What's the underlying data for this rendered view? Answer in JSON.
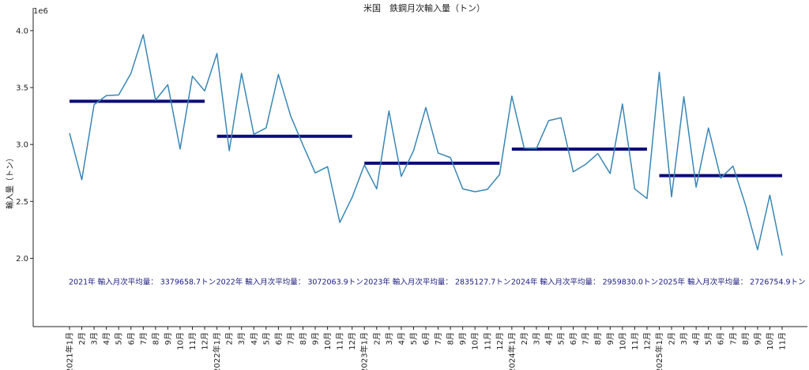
{
  "chart_data": {
    "type": "line",
    "title": "米国　鉄鋼月次輸入量（トン）",
    "ylabel": "輸入量（トン）",
    "y_scale_label": "1e6",
    "ylim": [
      1.4,
      4.2
    ],
    "yticks": [
      2.0,
      2.5,
      3.0,
      3.5,
      4.0
    ],
    "ytick_labels": [
      "2.0",
      "2.5",
      "3.0",
      "3.5",
      "4.0"
    ],
    "grid": false,
    "line_color": "#3a86b5",
    "avg_color": "#0b0b7a",
    "x_labels": [
      "2021年1月",
      "2月",
      "3月",
      "4月",
      "5月",
      "6月",
      "7月",
      "8月",
      "9月",
      "10月",
      "11月",
      "12月",
      "2022年1月",
      "2月",
      "3月",
      "4月",
      "5月",
      "6月",
      "7月",
      "8月",
      "9月",
      "10月",
      "11月",
      "12月",
      "2023年1月",
      "2月",
      "3月",
      "4月",
      "5月",
      "6月",
      "7月",
      "8月",
      "9月",
      "10月",
      "11月",
      "12月",
      "2024年1月",
      "2月",
      "3月",
      "4月",
      "5月",
      "6月",
      "7月",
      "8月",
      "9月",
      "10月",
      "11月",
      "12月",
      "2025年1月",
      "2月",
      "3月",
      "4月",
      "5月",
      "6月",
      "7月",
      "8月",
      "9月",
      "10月",
      "11月"
    ],
    "series": [
      {
        "values": [
          3.1,
          2.69,
          3.35,
          3.43,
          3.435,
          3.625,
          3.965,
          3.39,
          3.525,
          2.96,
          3.6,
          3.47,
          3.8,
          2.945,
          3.625,
          3.09,
          3.145,
          3.615,
          3.25,
          2.995,
          2.75,
          2.805,
          2.315,
          2.535,
          2.82,
          2.61,
          3.295,
          2.72,
          2.945,
          3.325,
          2.925,
          2.885,
          2.61,
          2.585,
          2.605,
          2.735,
          3.425,
          2.97,
          2.965,
          3.21,
          3.235,
          2.76,
          2.825,
          2.92,
          2.745,
          3.355,
          2.61,
          2.525,
          3.635,
          2.54,
          3.42,
          2.625,
          3.145,
          2.705,
          2.81,
          2.475,
          2.075,
          2.555,
          2.025
        ]
      }
    ],
    "yearly_averages": [
      {
        "year_label": "2021年",
        "avg": 3.3796587,
        "start_index": 0,
        "end_index": 11,
        "text": "2021年 輸入月次平均量： 3379658.7トン"
      },
      {
        "year_label": "2022年",
        "avg": 3.0720639,
        "start_index": 12,
        "end_index": 23,
        "text": "2022年 輸入月次平均量： 3072063.9トン"
      },
      {
        "year_label": "2023年",
        "avg": 2.8351277,
        "start_index": 24,
        "end_index": 35,
        "text": "2023年 輸入月次平均量： 2835127.7トン"
      },
      {
        "year_label": "2024年",
        "avg": 2.95983,
        "start_index": 36,
        "end_index": 47,
        "text": "2024年 輸入月次平均量： 2959830.0トン"
      },
      {
        "year_label": "2025年",
        "avg": 2.7267549,
        "start_index": 48,
        "end_index": 58,
        "text": "2025年 輸入月次平均量： 2726754.9トン"
      }
    ],
    "annotation_y": 1.8
  }
}
